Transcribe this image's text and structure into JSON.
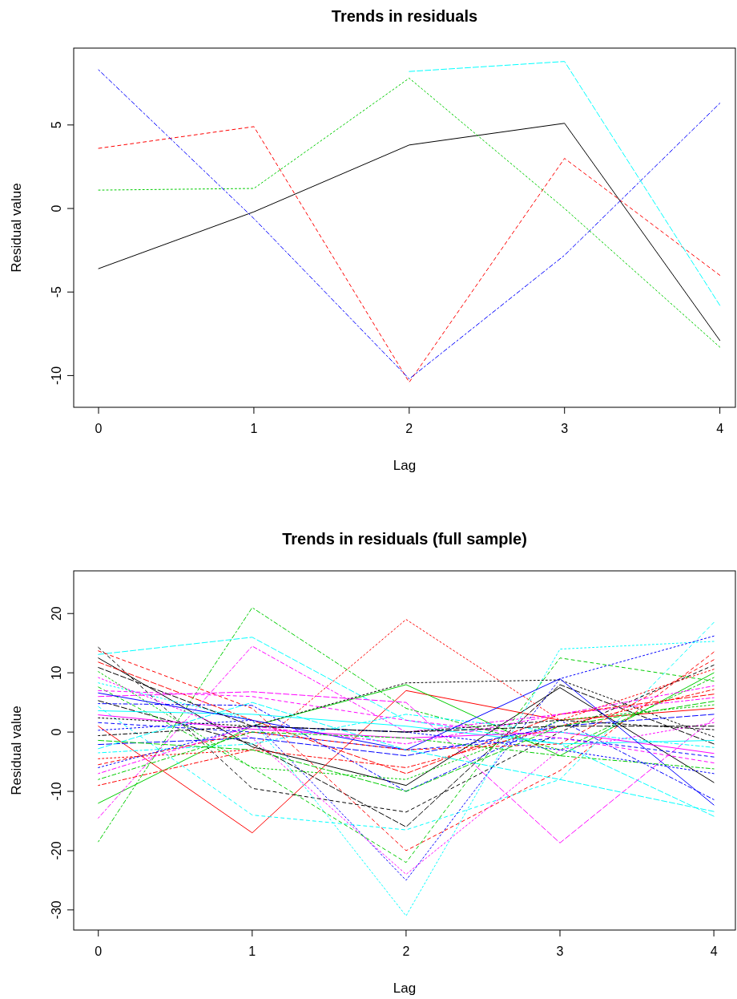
{
  "chart_data": [
    {
      "type": "line",
      "title": "Trends in residuals",
      "xlabel": "Lag",
      "ylabel": "Residual value",
      "x": [
        0,
        1,
        2,
        3,
        4
      ],
      "xlim": [
        -0.16,
        4.1
      ],
      "xticks": [
        0,
        1,
        2,
        3,
        4
      ],
      "ylim": [
        -11.9,
        9.6
      ],
      "yticks": [
        -10,
        -5,
        0,
        5
      ],
      "series": [
        {
          "color": "#000000",
          "line_style": "solid",
          "values": [
            -3.6,
            -0.2,
            3.8,
            5.1,
            -7.9
          ]
        },
        {
          "color": "#ff0000",
          "line_style": "dashed",
          "values": [
            3.6,
            4.9,
            -10.4,
            3.0,
            -4.0
          ]
        },
        {
          "color": "#00cd00",
          "line_style": "dotted",
          "values": [
            1.1,
            1.2,
            7.8,
            0.0,
            -8.3
          ]
        },
        {
          "color": "#0000ff",
          "line_style": "dashdot",
          "values": [
            8.3,
            -0.6,
            -10.2,
            -2.8,
            6.3
          ]
        },
        {
          "color": "#00ffff",
          "line_style": "longdash",
          "values": [
            null,
            null,
            8.2,
            8.8,
            -5.8
          ]
        }
      ]
    },
    {
      "type": "line",
      "title": "Trends in residuals (full sample)",
      "xlabel": "Lag",
      "ylabel": "Residual value",
      "x": [
        0,
        1,
        2,
        3,
        4
      ],
      "xlim": [
        -0.16,
        4.14
      ],
      "xticks": [
        0,
        1,
        2,
        3,
        4
      ],
      "ylim": [
        -33.4,
        27.2
      ],
      "yticks": [
        -30,
        -20,
        -10,
        0,
        10,
        20
      ],
      "series": [
        {
          "color": "#000000",
          "line_style": "solid",
          "values": [
            12.5,
            -2.5,
            -9,
            7.5,
            -8.5
          ]
        },
        {
          "color": "#ff0000",
          "line_style": "solid",
          "values": [
            1,
            -17,
            7,
            2,
            4
          ]
        },
        {
          "color": "#00cd00",
          "line_style": "solid",
          "values": [
            -12,
            1,
            8,
            -4,
            10
          ]
        },
        {
          "color": "#00cd00",
          "line_style": "dashdot",
          "values": [
            -18.5,
            21,
            4,
            -3,
            9.2
          ]
        },
        {
          "color": "#00ffff",
          "line_style": "longdash",
          "values": [
            13.1,
            16,
            2,
            -2,
            -14.2
          ]
        },
        {
          "color": "#ff00ff",
          "line_style": "dashdot",
          "values": [
            -14.5,
            14.5,
            0,
            3,
            5.8
          ]
        },
        {
          "color": "#ff0000",
          "line_style": "dotted",
          "values": [
            -4.5,
            -3,
            19,
            2,
            10.6
          ]
        },
        {
          "color": "#00ffff",
          "line_style": "dashed",
          "values": [
            4.3,
            -14,
            -16.5,
            -8,
            18.5
          ]
        },
        {
          "color": "#000000",
          "line_style": "dashed",
          "values": [
            14.3,
            -9.5,
            -13.5,
            0,
            11.3
          ]
        },
        {
          "color": "#000000",
          "line_style": "longdash",
          "values": [
            5.3,
            -2,
            -16,
            8,
            -2
          ]
        },
        {
          "color": "#ff00ff",
          "line_style": "longdash",
          "values": [
            6,
            6.8,
            5,
            -18.7,
            2.3
          ]
        },
        {
          "color": "#00ffff",
          "line_style": "dotted",
          "values": [
            8.3,
            2,
            -31,
            14,
            15.3
          ]
        },
        {
          "color": "#ff0000",
          "line_style": "dashed",
          "values": [
            13.7,
            4,
            -20,
            -6.5,
            13.5
          ]
        },
        {
          "color": "#0000ff",
          "line_style": "dotted",
          "values": [
            0.3,
            2,
            -25,
            9,
            16.2
          ]
        },
        {
          "color": "#ff00ff",
          "line_style": "dotted",
          "values": [
            9.2,
            -1,
            -24,
            -3,
            1.6
          ]
        },
        {
          "color": "#00cd00",
          "line_style": "dashed",
          "values": [
            7.6,
            -6,
            -22,
            12.5,
            8.6
          ]
        },
        {
          "color": "#0000ff",
          "line_style": "dashdot",
          "values": [
            4.8,
            4.5,
            -10,
            2,
            -11.4
          ]
        },
        {
          "color": "#000000",
          "line_style": "dotted",
          "values": [
            2.4,
            1,
            8.3,
            8.8,
            -0.8
          ]
        },
        {
          "color": "#ff0000",
          "line_style": "longdash",
          "values": [
            11.8,
            2,
            -7,
            3,
            6.4
          ]
        },
        {
          "color": "#00cd00",
          "line_style": "dotted",
          "values": [
            10.2,
            -6,
            -8,
            2,
            4.6
          ]
        },
        {
          "color": "#0000ff",
          "line_style": "dashed",
          "values": [
            1.6,
            0,
            -3,
            -1,
            -4.2
          ]
        },
        {
          "color": "#00ffff",
          "line_style": "solid",
          "values": [
            3.6,
            3,
            1,
            -2,
            -1.4
          ]
        },
        {
          "color": "#ff00ff",
          "line_style": "solid",
          "values": [
            2.9,
            0.5,
            -1,
            0,
            -3.6
          ]
        },
        {
          "color": "#0000ff",
          "line_style": "longdash",
          "values": [
            -2.1,
            -1,
            -4,
            1,
            3
          ]
        },
        {
          "color": "#00ffff",
          "line_style": "dashdot",
          "values": [
            -3.5,
            -2,
            3,
            0,
            -2.6
          ]
        },
        {
          "color": "#ff0000",
          "line_style": "dashdot",
          "values": [
            -9,
            -3,
            -6,
            1,
            7.2
          ]
        },
        {
          "color": "#ff00ff",
          "line_style": "dashed",
          "values": [
            7,
            6,
            2,
            -1,
            -5.2
          ]
        },
        {
          "color": "#000000",
          "line_style": "dashdot",
          "values": [
            -0.6,
            1,
            0,
            2,
            0.4
          ]
        },
        {
          "color": "#00cd00",
          "line_style": "longdash",
          "values": [
            -1.4,
            -3,
            -10,
            1,
            5.2
          ]
        },
        {
          "color": "#0000ff",
          "line_style": "solid",
          "values": [
            6.6,
            2,
            -3,
            9,
            -12.3
          ]
        },
        {
          "color": "#00ffff",
          "line_style": "longdash",
          "values": [
            -2.8,
            5,
            -3,
            -8,
            -13.4
          ]
        },
        {
          "color": "#ff0000",
          "line_style": "dashed",
          "values": [
            -5.5,
            0,
            -3,
            -2,
            12.2
          ]
        },
        {
          "color": "#ff00ff",
          "line_style": "dashdot",
          "values": [
            -7,
            1,
            -2,
            3,
            7.8
          ]
        },
        {
          "color": "#00cd00",
          "line_style": "dashdot",
          "values": [
            -8,
            0,
            -1,
            -4,
            -6.2
          ]
        },
        {
          "color": "#0000ff",
          "line_style": "dotted",
          "values": [
            -6,
            1,
            0,
            -3,
            -7
          ]
        },
        {
          "color": "#000000",
          "line_style": "longdash",
          "values": [
            10.9,
            1,
            0,
            1,
            1
          ]
        }
      ]
    }
  ]
}
